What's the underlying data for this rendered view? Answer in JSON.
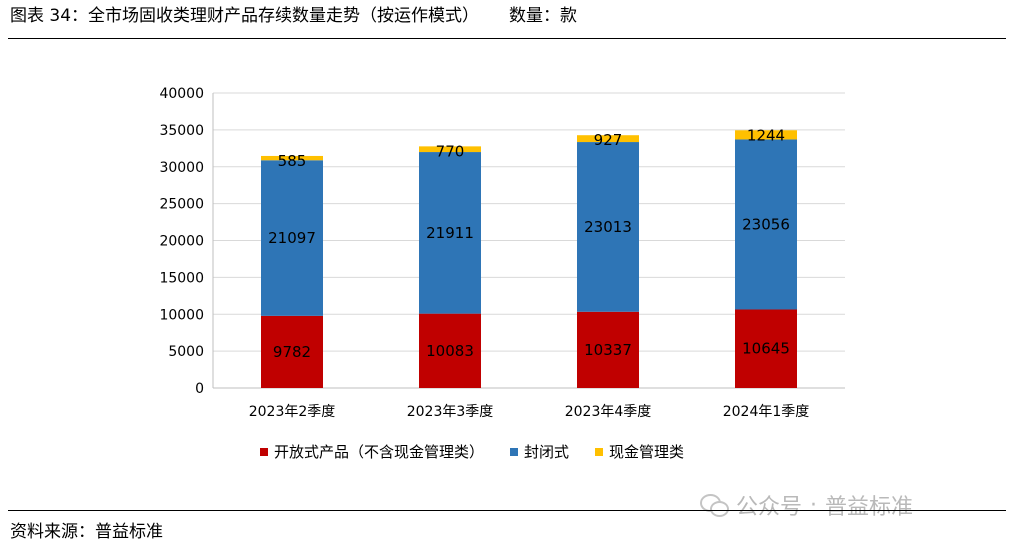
{
  "header": {
    "title": "图表 34：全市场固收类理财产品存续数量走势（按运作模式）",
    "unit": "数量：款"
  },
  "source": "资料来源：普益标准",
  "watermark": {
    "icon": "wechat-icon",
    "left": "公众号",
    "sep": "·",
    "right": "普益标准"
  },
  "colors": {
    "open": "#c00000",
    "closed": "#2e75b6",
    "cash": "#ffc000",
    "grid": "#d9d9d9"
  },
  "chart_data": {
    "type": "bar",
    "stacked": true,
    "title": "",
    "xlabel": "",
    "ylabel": "",
    "ylim": [
      0,
      40000
    ],
    "yticks": [
      0,
      5000,
      10000,
      15000,
      20000,
      25000,
      30000,
      35000,
      40000
    ],
    "grid": true,
    "legend_position": "bottom",
    "categories": [
      "2023年2季度",
      "2023年3季度",
      "2023年4季度",
      "2024年1季度"
    ],
    "series": [
      {
        "name": "开放式产品（不含现金管理类）",
        "values": [
          9782,
          10083,
          10337,
          10645
        ]
      },
      {
        "name": "封闭式",
        "values": [
          21097,
          21911,
          23013,
          23056
        ]
      },
      {
        "name": "现金管理类",
        "values": [
          585,
          770,
          927,
          1244
        ]
      }
    ]
  }
}
